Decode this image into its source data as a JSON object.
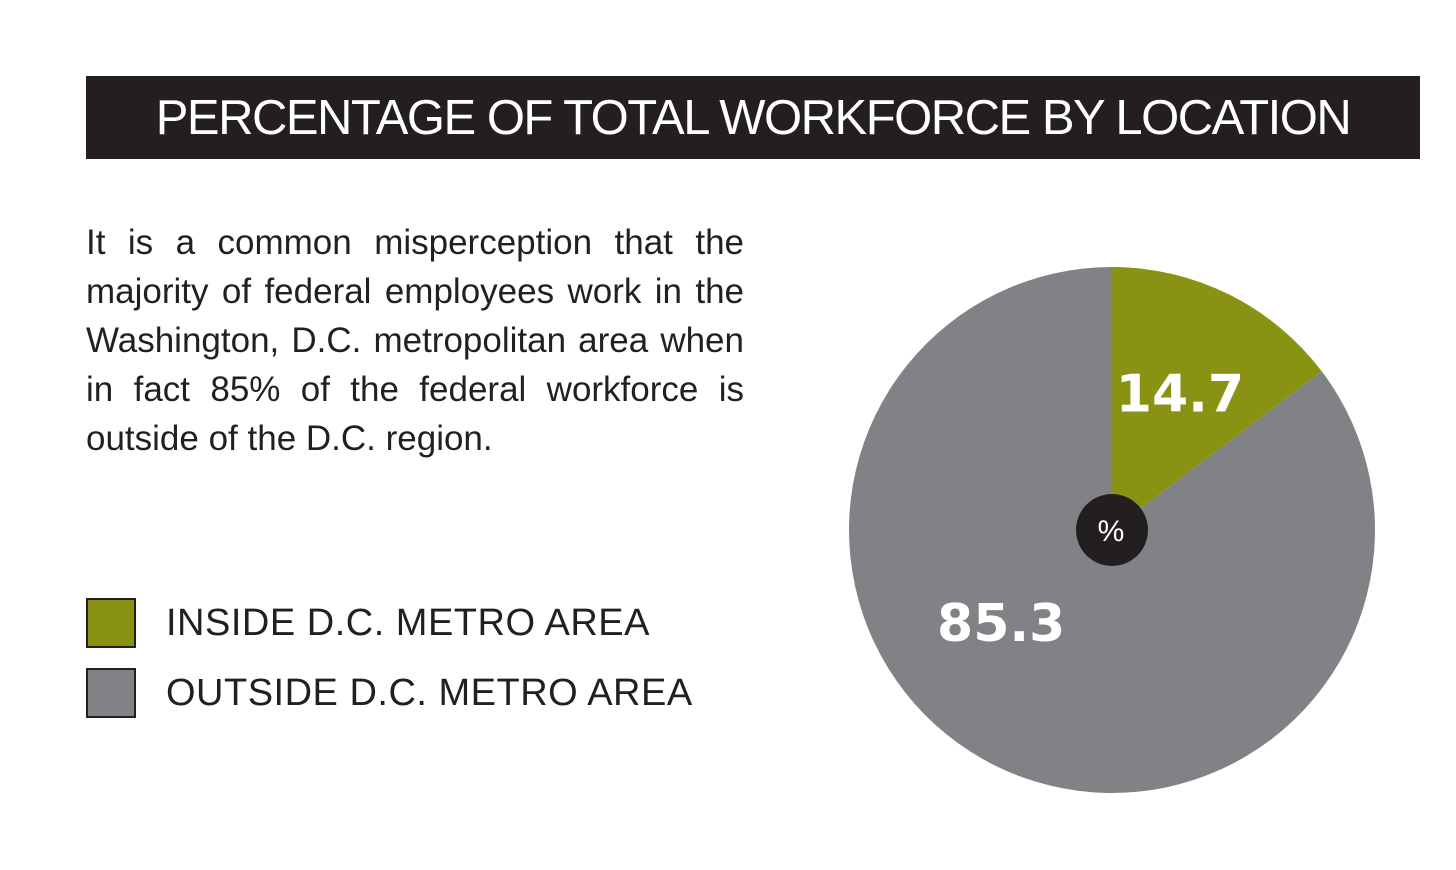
{
  "header": {
    "title": "PERCENTAGE OF TOTAL WORKFORCE BY LOCATION"
  },
  "description": "It is a common misperception that the majority of federal employees work in the Washington, D.C. metropolitan area when in fact 85% of the federal workforce is outside of the D.C. region.",
  "chart_data": {
    "type": "pie",
    "title": "PERCENTAGE OF TOTAL WORKFORCE BY LOCATION",
    "unit_label": "%",
    "slices": [
      {
        "label": "INSIDE D.C. METRO AREA",
        "value": 14.7,
        "value_label": "14.7",
        "color": "#8a9213"
      },
      {
        "label": "OUTSIDE D.C. METRO AREA",
        "value": 85.3,
        "value_label": "85.3",
        "color": "#818285"
      }
    ],
    "legend_position": "left"
  },
  "colors": {
    "title_bar": "#231f20",
    "text": "#231f20",
    "center_circle": "#231f20"
  }
}
